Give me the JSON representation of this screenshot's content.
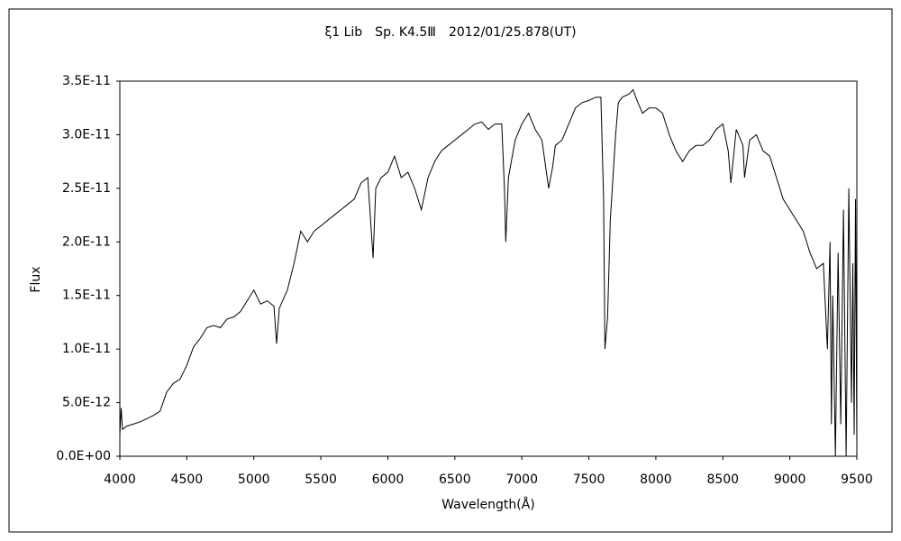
{
  "chart_data": {
    "type": "line",
    "title": "ξ1 Lib　Sp. K4.5Ⅲ　2012/01/25.878(UT)",
    "x_label": "Wavelength(Å)",
    "y_label": "Flux",
    "color": "#000000",
    "xlim": [
      4000,
      9500
    ],
    "xticks": [
      4000,
      4500,
      5000,
      5500,
      6000,
      6500,
      7000,
      7500,
      8000,
      8500,
      9000,
      9500
    ],
    "ylim": [
      0,
      3.5e-11
    ],
    "yticks": [
      {
        "value": 0,
        "label": "0.0E+00"
      },
      {
        "value": 5e-12,
        "label": "5.0E-12"
      },
      {
        "value": 1e-11,
        "label": "1.0E-11"
      },
      {
        "value": 1.5e-11,
        "label": "1.5E-11"
      },
      {
        "value": 2e-11,
        "label": "2.0E-11"
      },
      {
        "value": 2.5e-11,
        "label": "2.5E-11"
      },
      {
        "value": 3e-11,
        "label": "3.0E-11"
      },
      {
        "value": 3.5e-11,
        "label": "3.5E-11"
      }
    ],
    "x": [
      4000,
      4010,
      4020,
      4050,
      4100,
      4150,
      4200,
      4250,
      4300,
      4350,
      4400,
      4450,
      4500,
      4550,
      4600,
      4650,
      4700,
      4750,
      4800,
      4850,
      4900,
      4950,
      5000,
      5050,
      5100,
      5150,
      5170,
      5190,
      5250,
      5300,
      5350,
      5400,
      5450,
      5500,
      5550,
      5600,
      5650,
      5700,
      5750,
      5800,
      5850,
      5890,
      5910,
      5950,
      6000,
      6050,
      6100,
      6150,
      6200,
      6250,
      6300,
      6350,
      6400,
      6450,
      6500,
      6550,
      6600,
      6650,
      6700,
      6750,
      6800,
      6850,
      6870,
      6880,
      6900,
      6950,
      7000,
      7050,
      7100,
      7150,
      7200,
      7230,
      7250,
      7300,
      7350,
      7400,
      7450,
      7500,
      7550,
      7590,
      7610,
      7620,
      7640,
      7660,
      7700,
      7720,
      7750,
      7800,
      7830,
      7850,
      7900,
      7950,
      8000,
      8050,
      8100,
      8150,
      8200,
      8250,
      8300,
      8350,
      8400,
      8450,
      8500,
      8540,
      8560,
      8600,
      8650,
      8662,
      8700,
      8750,
      8800,
      8850,
      8900,
      8950,
      9000,
      9050,
      9100,
      9150,
      9200,
      9250,
      9280,
      9300,
      9310,
      9320,
      9340,
      9360,
      9380,
      9400,
      9420,
      9440,
      9460,
      9470,
      9480,
      9490,
      9500
    ],
    "values": [
      2e-12,
      4.5e-12,
      2.5e-12,
      2.8e-12,
      3e-12,
      3.2e-12,
      3.5e-12,
      3.8e-12,
      4.2e-12,
      6e-12,
      6.8e-12,
      7.2e-12,
      8.5e-12,
      1.02e-11,
      1.1e-11,
      1.2e-11,
      1.22e-11,
      1.2e-11,
      1.28e-11,
      1.3e-11,
      1.35e-11,
      1.45e-11,
      1.55e-11,
      1.42e-11,
      1.45e-11,
      1.4e-11,
      1.05e-11,
      1.38e-11,
      1.55e-11,
      1.8e-11,
      2.1e-11,
      2e-11,
      2.1e-11,
      2.15e-11,
      2.2e-11,
      2.25e-11,
      2.3e-11,
      2.35e-11,
      2.4e-11,
      2.55e-11,
      2.6e-11,
      1.85e-11,
      2.5e-11,
      2.6e-11,
      2.65e-11,
      2.8e-11,
      2.6e-11,
      2.65e-11,
      2.5e-11,
      2.3e-11,
      2.6e-11,
      2.75e-11,
      2.85e-11,
      2.9e-11,
      2.95e-11,
      3e-11,
      3.05e-11,
      3.1e-11,
      3.12e-11,
      3.05e-11,
      3.1e-11,
      3.1e-11,
      2.5e-11,
      2e-11,
      2.6e-11,
      2.95e-11,
      3.1e-11,
      3.2e-11,
      3.05e-11,
      2.95e-11,
      2.5e-11,
      2.7e-11,
      2.9e-11,
      2.95e-11,
      3.1e-11,
      3.25e-11,
      3.3e-11,
      3.32e-11,
      3.35e-11,
      3.35e-11,
      2.4e-11,
      1e-11,
      1.3e-11,
      2.2e-11,
      3e-11,
      3.3e-11,
      3.35e-11,
      3.38e-11,
      3.42e-11,
      3.35e-11,
      3.2e-11,
      3.25e-11,
      3.25e-11,
      3.2e-11,
      3e-11,
      2.85e-11,
      2.75e-11,
      2.85e-11,
      2.9e-11,
      2.9e-11,
      2.95e-11,
      3.05e-11,
      3.1e-11,
      2.85e-11,
      2.55e-11,
      3.05e-11,
      2.9e-11,
      2.6e-11,
      2.95e-11,
      3e-11,
      2.85e-11,
      2.8e-11,
      2.6e-11,
      2.4e-11,
      2.3e-11,
      2.2e-11,
      2.1e-11,
      1.9e-11,
      1.75e-11,
      1.8e-11,
      1e-11,
      2e-11,
      3e-12,
      1.5e-11,
      0,
      1.9e-11,
      3e-12,
      2.3e-11,
      0,
      2.5e-11,
      5e-12,
      1.8e-11,
      2e-12,
      2.4e-11,
      1e-12
    ]
  }
}
